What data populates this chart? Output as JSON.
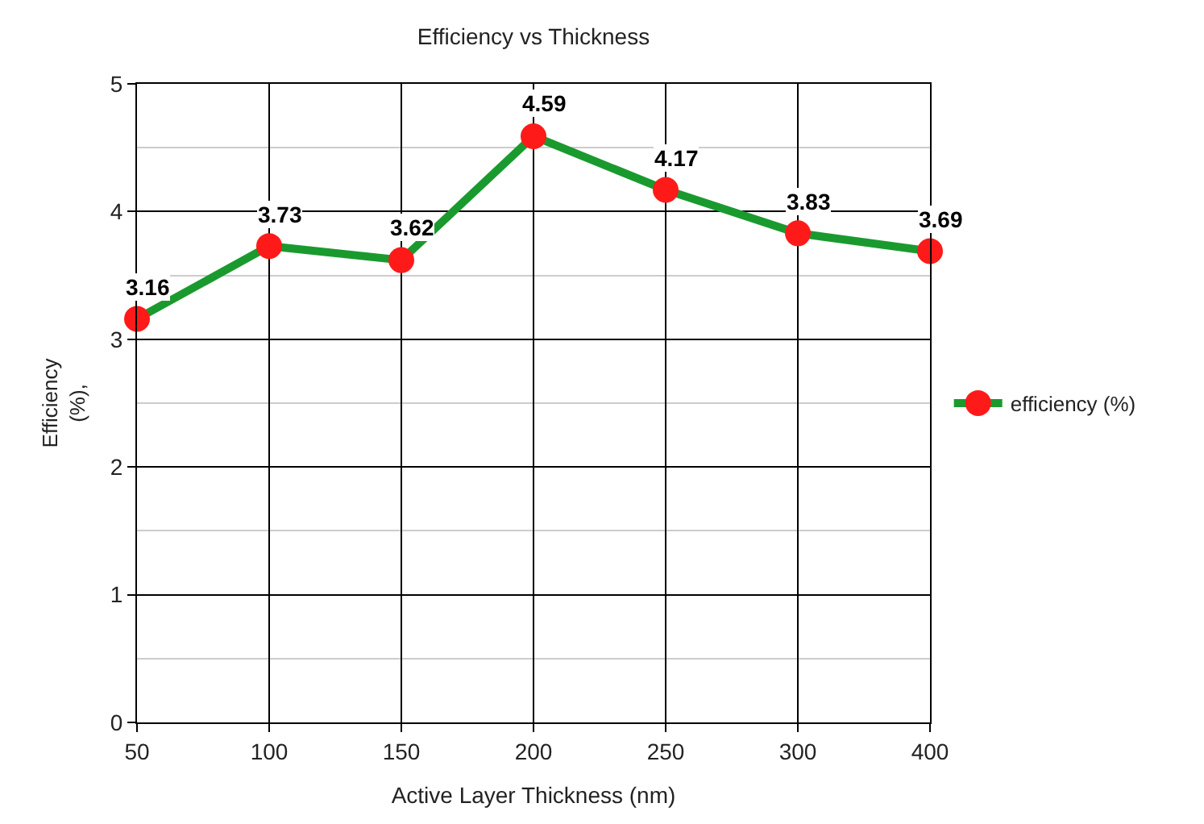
{
  "chart_data": {
    "type": "line",
    "title": "Efficiency vs Thickness",
    "xlabel": "Active Layer Thickness (nm)",
    "ylabel": "Efficiency\n(%),",
    "categories": [
      "50",
      "100",
      "150",
      "200",
      "250",
      "300",
      "400"
    ],
    "series": [
      {
        "name": "efficiency (%)",
        "color": "#1a9a2e",
        "colors": [
          "#ff1a1a",
          "#ff1a1a",
          "#ff1a1a",
          "#ff1a1a",
          "#ff1a1a",
          "#ff1a1a",
          "#ff1a1a"
        ],
        "values": [
          3.16,
          3.73,
          3.62,
          4.59,
          4.17,
          3.83,
          3.69
        ]
      }
    ],
    "ylim": [
      0,
      5
    ],
    "yticks": [
      0,
      {
        "value": 0.5,
        "label": null
      },
      1,
      {
        "value": 1.5,
        "label": null
      },
      2,
      {
        "value": 2.5,
        "label": null
      },
      3,
      {
        "value": 3.5,
        "label": null
      },
      4,
      {
        "value": 4.5,
        "label": null
      },
      5
    ],
    "grid": true,
    "legend": "right",
    "marker": "circle",
    "line_style": "solid",
    "data_labels": true
  }
}
